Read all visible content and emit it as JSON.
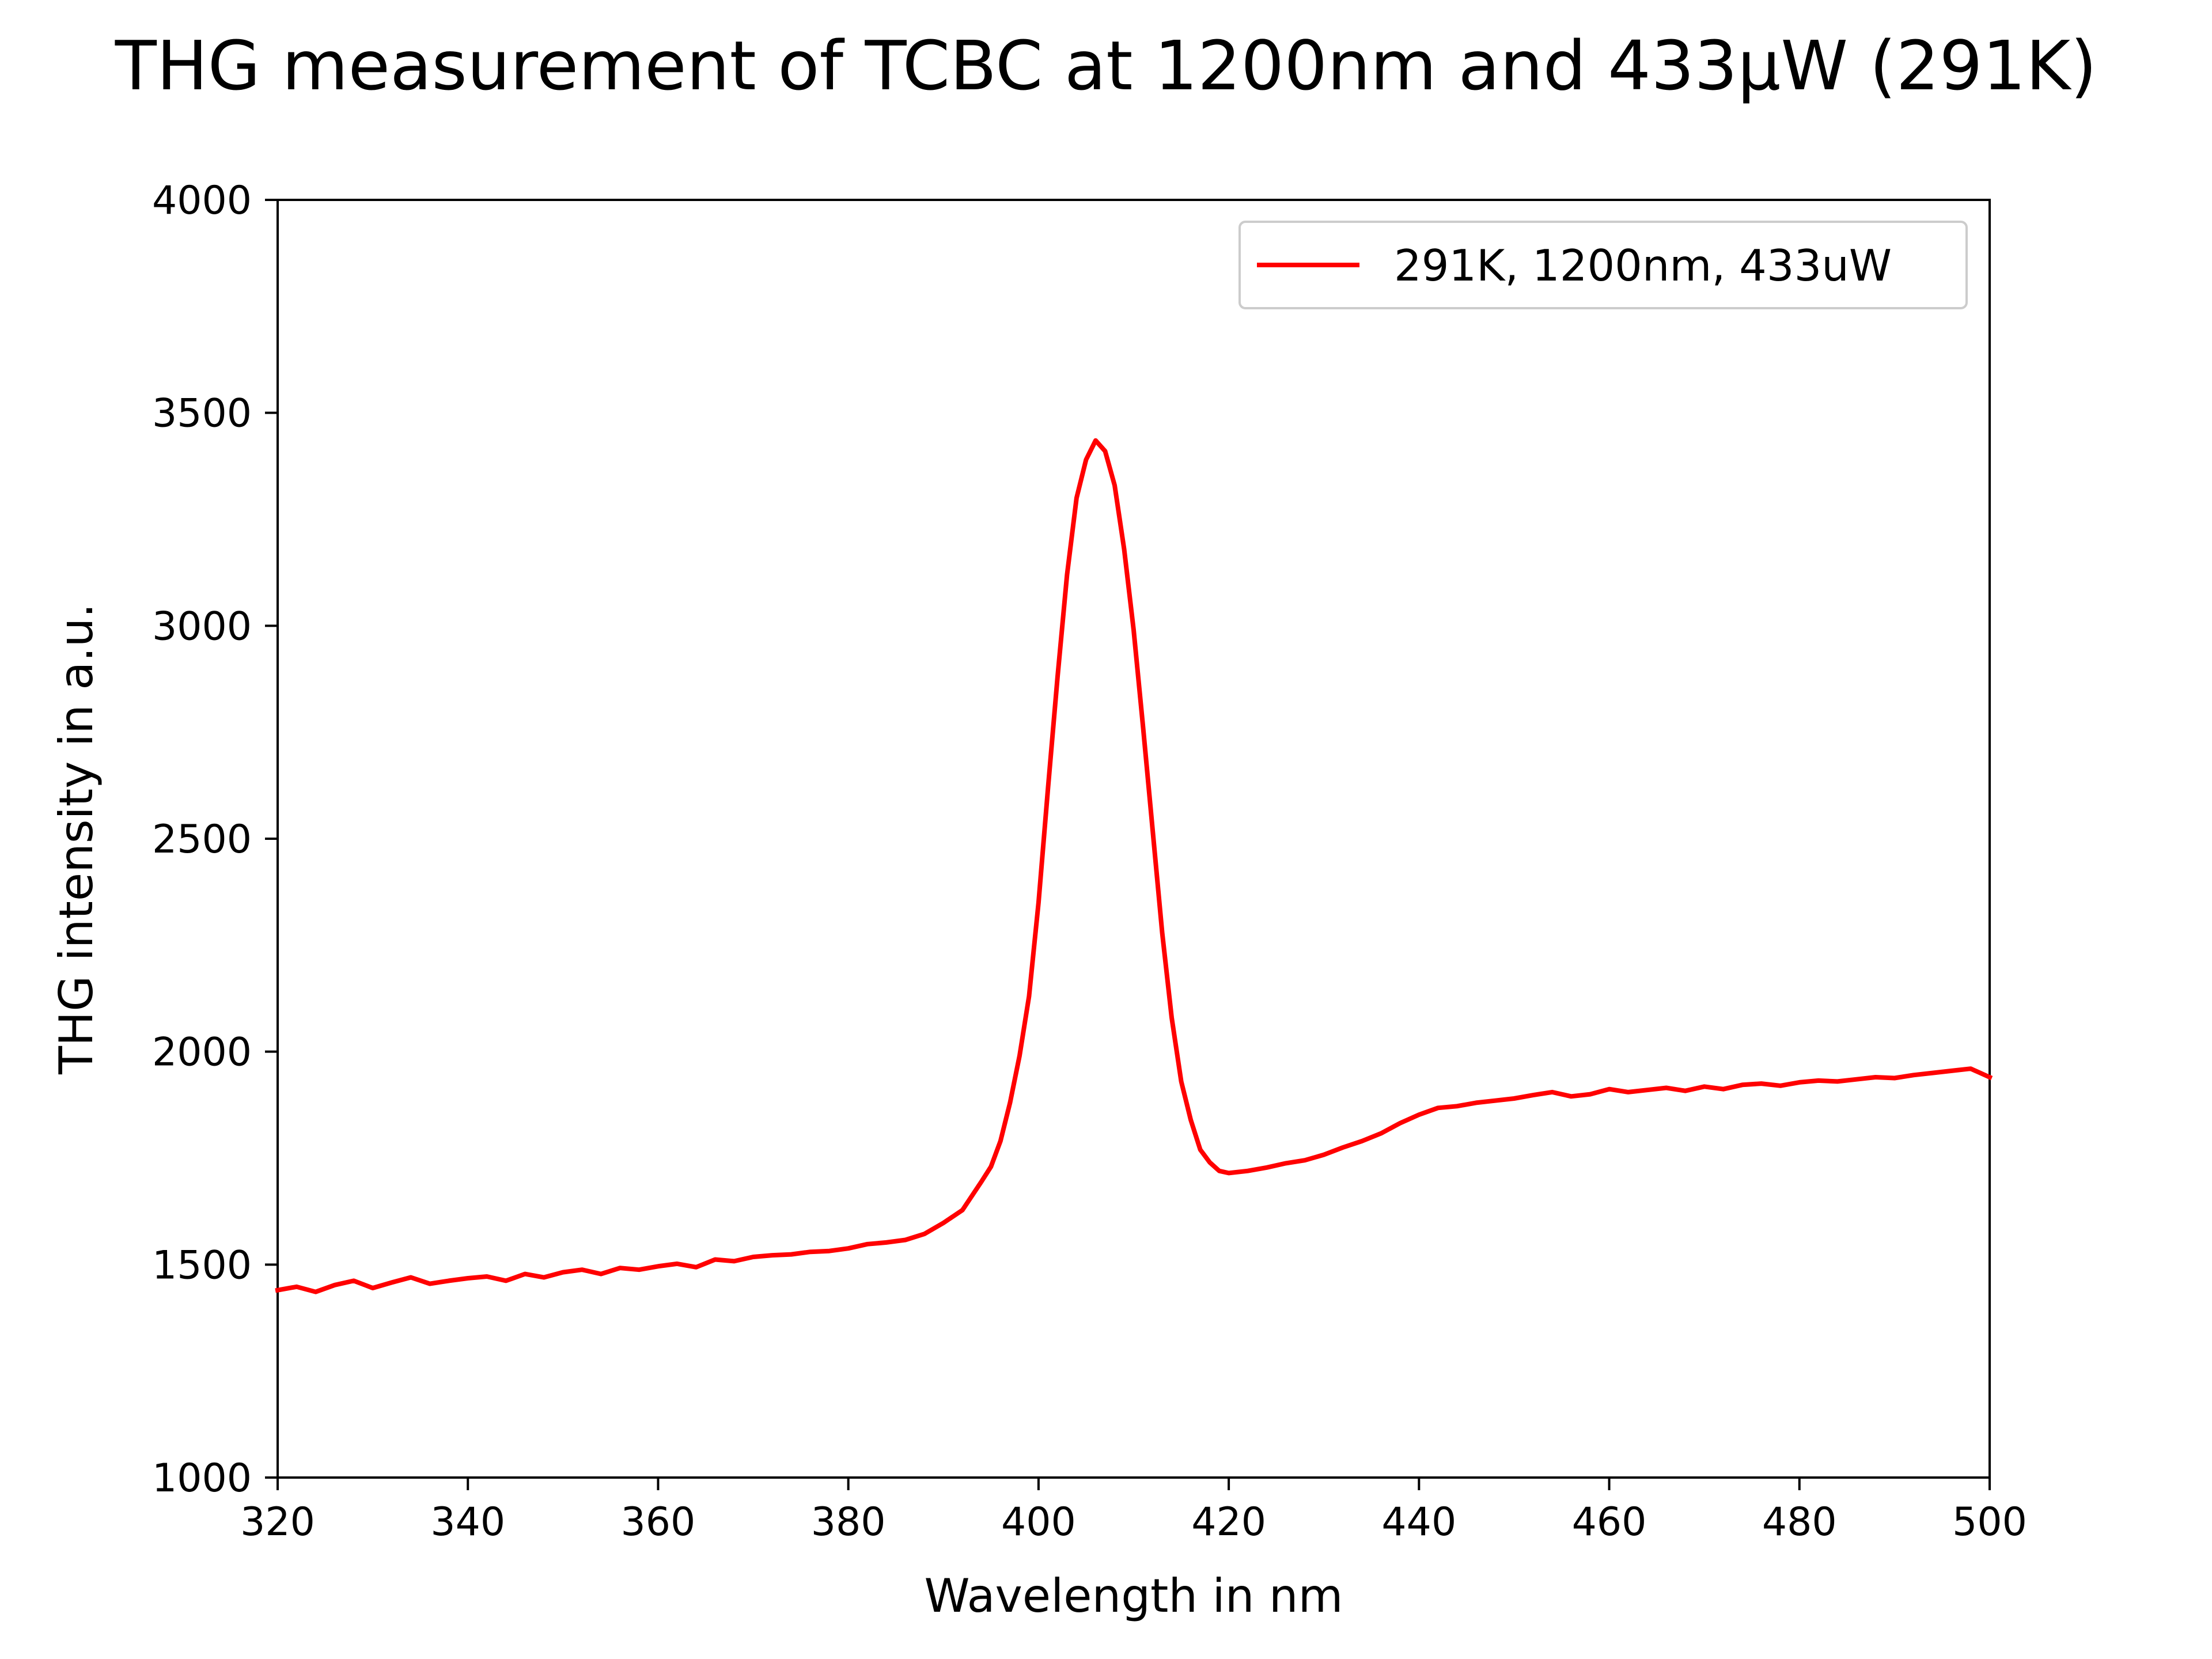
{
  "chart_data": {
    "type": "line",
    "title": "THG measurement of TCBC at 1200nm and 433µW (291K)",
    "xlabel": "Wavelength in nm",
    "ylabel": "THG intensity in a.u.",
    "xlim": [
      320,
      500
    ],
    "ylim": [
      1000,
      4000
    ],
    "xticks": [
      "320",
      "340",
      "360",
      "380",
      "400",
      "420",
      "440",
      "460",
      "480",
      "500"
    ],
    "yticks": [
      "1000",
      "1500",
      "2000",
      "2500",
      "3000",
      "3500",
      "4000"
    ],
    "grid": false,
    "legend_position": "upper right",
    "series": [
      {
        "name": "291K, 1200nm, 433uW",
        "color": "#ff0000",
        "points": [
          [
            320,
            1440
          ],
          [
            322,
            1448
          ],
          [
            324,
            1436
          ],
          [
            326,
            1452
          ],
          [
            328,
            1462
          ],
          [
            330,
            1445
          ],
          [
            332,
            1458
          ],
          [
            334,
            1470
          ],
          [
            336,
            1455
          ],
          [
            338,
            1462
          ],
          [
            340,
            1468
          ],
          [
            342,
            1472
          ],
          [
            344,
            1462
          ],
          [
            346,
            1478
          ],
          [
            348,
            1470
          ],
          [
            350,
            1482
          ],
          [
            352,
            1488
          ],
          [
            354,
            1478
          ],
          [
            356,
            1492
          ],
          [
            358,
            1488
          ],
          [
            360,
            1496
          ],
          [
            362,
            1502
          ],
          [
            364,
            1494
          ],
          [
            366,
            1512
          ],
          [
            368,
            1508
          ],
          [
            370,
            1518
          ],
          [
            372,
            1522
          ],
          [
            374,
            1524
          ],
          [
            376,
            1530
          ],
          [
            378,
            1532
          ],
          [
            380,
            1538
          ],
          [
            382,
            1548
          ],
          [
            384,
            1552
          ],
          [
            386,
            1558
          ],
          [
            388,
            1572
          ],
          [
            390,
            1598
          ],
          [
            392,
            1628
          ],
          [
            394,
            1695
          ],
          [
            395,
            1730
          ],
          [
            396,
            1790
          ],
          [
            397,
            1880
          ],
          [
            398,
            1990
          ],
          [
            399,
            2130
          ],
          [
            400,
            2350
          ],
          [
            401,
            2620
          ],
          [
            402,
            2880
          ],
          [
            403,
            3120
          ],
          [
            404,
            3300
          ],
          [
            405,
            3390
          ],
          [
            406,
            3435
          ],
          [
            407,
            3410
          ],
          [
            408,
            3330
          ],
          [
            409,
            3180
          ],
          [
            410,
            2990
          ],
          [
            411,
            2760
          ],
          [
            412,
            2520
          ],
          [
            413,
            2280
          ],
          [
            414,
            2080
          ],
          [
            415,
            1930
          ],
          [
            416,
            1840
          ],
          [
            417,
            1770
          ],
          [
            418,
            1740
          ],
          [
            419,
            1720
          ],
          [
            420,
            1715
          ],
          [
            422,
            1720
          ],
          [
            424,
            1728
          ],
          [
            426,
            1738
          ],
          [
            428,
            1745
          ],
          [
            430,
            1758
          ],
          [
            432,
            1775
          ],
          [
            434,
            1790
          ],
          [
            436,
            1808
          ],
          [
            438,
            1832
          ],
          [
            440,
            1852
          ],
          [
            442,
            1868
          ],
          [
            444,
            1872
          ],
          [
            446,
            1880
          ],
          [
            448,
            1885
          ],
          [
            450,
            1890
          ],
          [
            452,
            1898
          ],
          [
            454,
            1905
          ],
          [
            456,
            1895
          ],
          [
            458,
            1900
          ],
          [
            460,
            1912
          ],
          [
            462,
            1905
          ],
          [
            464,
            1910
          ],
          [
            466,
            1915
          ],
          [
            468,
            1908
          ],
          [
            470,
            1918
          ],
          [
            472,
            1912
          ],
          [
            474,
            1922
          ],
          [
            476,
            1925
          ],
          [
            478,
            1920
          ],
          [
            480,
            1928
          ],
          [
            482,
            1932
          ],
          [
            484,
            1930
          ],
          [
            486,
            1935
          ],
          [
            488,
            1940
          ],
          [
            490,
            1938
          ],
          [
            492,
            1945
          ],
          [
            494,
            1950
          ],
          [
            496,
            1955
          ],
          [
            498,
            1960
          ],
          [
            500,
            1940
          ]
        ]
      }
    ]
  }
}
